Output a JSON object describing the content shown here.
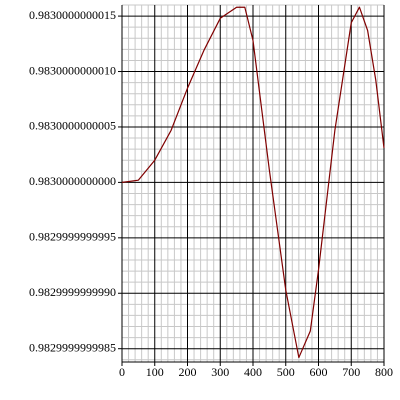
{
  "chart_data": {
    "type": "line",
    "x": [
      0,
      50,
      100,
      150,
      200,
      250,
      300,
      350,
      375,
      400,
      450,
      500,
      540,
      575,
      600,
      650,
      700,
      725,
      750,
      775,
      800
    ],
    "series": [
      {
        "color": "#800000",
        "values": [
          0.983,
          0.98300000000002,
          0.9830000000002,
          0.98300000000047,
          0.98300000000085,
          0.98300000000119,
          0.98300000000148,
          0.98300000000158,
          0.98300000000158,
          0.98300000000128,
          0.98300000000011,
          0.98299999999903,
          0.98299999999842,
          0.98299999999866,
          0.98299999999921,
          0.98300000000047,
          0.98300000000144,
          0.98300000000158,
          0.98300000000137,
          0.98300000000092,
          0.98300000000031
        ]
      }
    ],
    "xlim": [
      0,
      800
    ],
    "xticks": [
      0,
      100,
      200,
      300,
      400,
      500,
      600,
      700,
      800
    ],
    "ylim": [
      0.98299999999838,
      0.9830000000016
    ],
    "yticks": [
      {
        "value": 0.9829999999985,
        "label": "0.9829999999985"
      },
      {
        "value": 0.982999999999,
        "label": "0.9829999999990"
      },
      {
        "value": 0.9829999999995,
        "label": "0.9829999999995"
      },
      {
        "value": 0.983,
        "label": "0.9830000000000"
      },
      {
        "value": 0.9830000000005,
        "label": "0.9830000000005"
      },
      {
        "value": 0.983000000001,
        "label": "0.9830000000010"
      },
      {
        "value": 0.9830000000015,
        "label": "0.9830000000015"
      }
    ],
    "grid": true
  }
}
